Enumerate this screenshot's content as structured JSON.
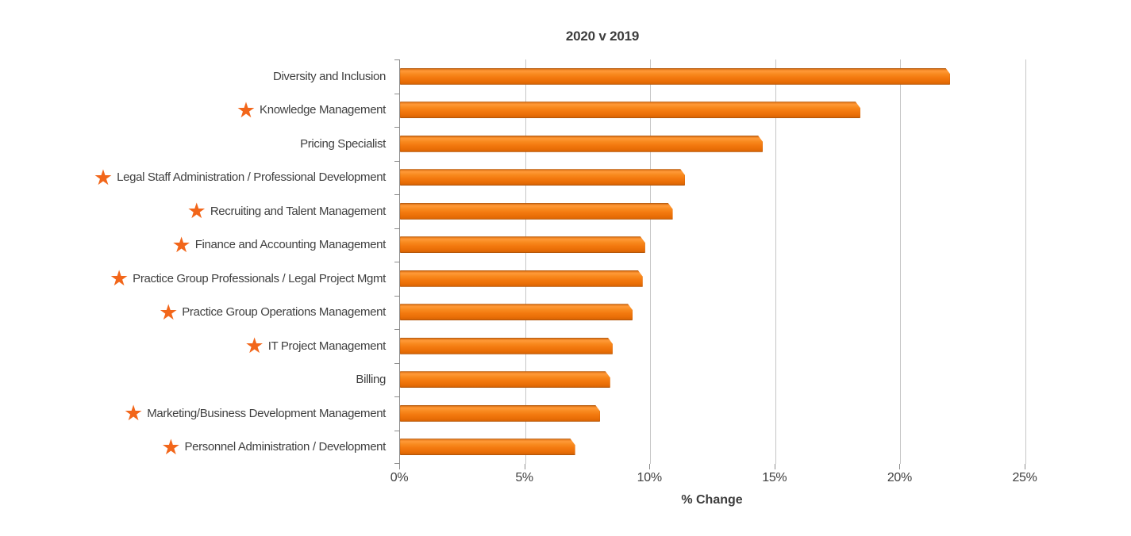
{
  "chart_data": {
    "type": "bar",
    "orientation": "horizontal",
    "title": "2020 v 2019",
    "xlabel": "% Change",
    "xlim": [
      0,
      25
    ],
    "xticks": [
      {
        "value": 0,
        "label": "0%"
      },
      {
        "value": 5,
        "label": "5%"
      },
      {
        "value": 10,
        "label": "10%"
      },
      {
        "value": 15,
        "label": "15%"
      },
      {
        "value": 20,
        "label": "20%"
      },
      {
        "value": 25,
        "label": "25%"
      }
    ],
    "grid": "vertical",
    "legend": "none",
    "bar_color": "#F47A10",
    "star_color": "#F2661A",
    "star_icon": "★",
    "rows": [
      {
        "label": "Diversity and Inclusion",
        "value": 22.0,
        "starred": false
      },
      {
        "label": "Knowledge Management",
        "value": 18.4,
        "starred": true
      },
      {
        "label": "Pricing Specialist",
        "value": 14.5,
        "starred": false
      },
      {
        "label": "Legal Staff Administration / Professional Development",
        "value": 11.4,
        "starred": true
      },
      {
        "label": "Recruiting and Talent Management",
        "value": 10.9,
        "starred": true
      },
      {
        "label": "Finance and Accounting Management",
        "value": 9.8,
        "starred": true
      },
      {
        "label": "Practice Group Professionals / Legal Project Mgmt",
        "value": 9.7,
        "starred": true
      },
      {
        "label": "Practice Group Operations Management",
        "value": 9.3,
        "starred": true
      },
      {
        "label": "IT Project Management",
        "value": 8.5,
        "starred": true
      },
      {
        "label": "Billing",
        "value": 8.4,
        "starred": false
      },
      {
        "label": "Marketing/Business Development Management",
        "value": 8.0,
        "starred": true
      },
      {
        "label": "Personnel Administration / Development",
        "value": 7.0,
        "starred": true
      }
    ]
  }
}
